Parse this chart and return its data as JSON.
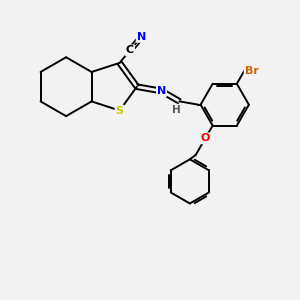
{
  "background_color": "#f2f2f2",
  "bond_color": "#000000",
  "atom_colors": {
    "N": "#0000ff",
    "S": "#cccc00",
    "O": "#ff0000",
    "Br": "#cc6600",
    "C": "#000000",
    "H": "#555555"
  },
  "figsize": [
    3.0,
    3.0
  ],
  "dpi": 100
}
